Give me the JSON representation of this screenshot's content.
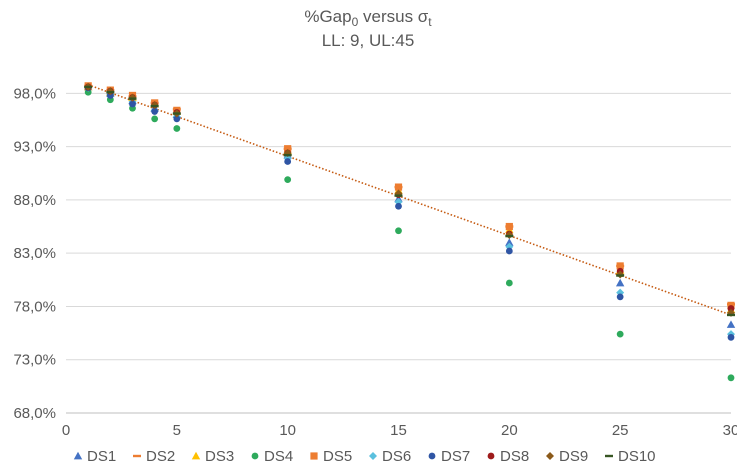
{
  "chart_data": {
    "type": "scatter",
    "title": {
      "prefix": "%Gap",
      "prefix_sub": "0",
      "middle": " versus σ",
      "suffix_sub": "t"
    },
    "subtitle": "LL: 9, UL:45",
    "xlabel": "",
    "ylabel": "",
    "xlim": [
      0,
      30
    ],
    "ylim": [
      68,
      100
    ],
    "x_ticks": [
      0,
      5,
      10,
      15,
      20,
      25,
      30
    ],
    "x_tick_labels": [
      "0",
      "5",
      "10",
      "15",
      "20",
      "25",
      "30"
    ],
    "y_ticks": [
      68,
      73,
      78,
      83,
      88,
      93,
      98
    ],
    "y_tick_labels": [
      "68,0%",
      "73,0%",
      "78,0%",
      "83,0%",
      "88,0%",
      "93,0%",
      "98,0%"
    ],
    "grid": "horizontal",
    "legend_position": "bottom",
    "x": [
      1,
      2,
      3,
      4,
      5,
      10,
      15,
      20,
      25,
      30
    ],
    "series": [
      {
        "name": "DS1",
        "marker": "triangle",
        "color": "#4472C4",
        "values": [
          98.6,
          98.0,
          97.3,
          96.6,
          96.0,
          92.2,
          88.1,
          84.0,
          80.2,
          76.3
        ]
      },
      {
        "name": "DS2",
        "marker": "dash",
        "color": "#ED7D31",
        "values": [
          98.7,
          98.3,
          97.7,
          97.1,
          96.5,
          92.8,
          89.2,
          85.5,
          81.8,
          78.2
        ]
      },
      {
        "name": "DS3",
        "marker": "triangle",
        "color": "#FFC000",
        "values": [
          98.6,
          98.1,
          97.6,
          97.0,
          96.3,
          92.6,
          88.9,
          85.2,
          81.4,
          77.7
        ]
      },
      {
        "name": "DS4",
        "marker": "circle",
        "color": "#2EAA5C",
        "values": [
          98.1,
          97.4,
          96.6,
          95.6,
          94.7,
          89.9,
          85.1,
          80.2,
          75.4,
          71.3
        ]
      },
      {
        "name": "DS5",
        "marker": "square",
        "color": "#ED7D31",
        "values": [
          98.7,
          98.3,
          97.8,
          97.1,
          96.4,
          92.8,
          89.2,
          85.5,
          81.8,
          78.1
        ]
      },
      {
        "name": "DS6",
        "marker": "diamond",
        "color": "#5BC0DE",
        "values": [
          98.5,
          97.9,
          97.2,
          96.4,
          95.8,
          91.9,
          87.8,
          83.6,
          79.3,
          75.4
        ]
      },
      {
        "name": "DS7",
        "marker": "circle",
        "color": "#2F55A4",
        "values": [
          98.5,
          97.8,
          97.0,
          96.3,
          95.6,
          91.6,
          87.4,
          83.2,
          78.9,
          75.1
        ]
      },
      {
        "name": "DS8",
        "marker": "circle",
        "color": "#9E1B1B",
        "values": [
          98.6,
          98.2,
          97.6,
          96.9,
          96.2,
          92.4,
          88.5,
          84.8,
          81.3,
          77.8
        ]
      },
      {
        "name": "DS9",
        "marker": "diamond",
        "color": "#8B5A1A",
        "values": [
          98.6,
          98.2,
          97.6,
          96.9,
          96.1,
          92.4,
          88.6,
          84.7,
          81.0,
          77.4
        ]
      },
      {
        "name": "DS10",
        "marker": "dash",
        "color": "#375623",
        "values": [
          98.6,
          98.1,
          97.5,
          96.8,
          96.1,
          92.2,
          88.4,
          84.6,
          80.9,
          77.2
        ]
      }
    ],
    "trendline": {
      "style": "dotted",
      "color": "#C55A11",
      "start": [
        1,
        98.8
      ],
      "end": [
        30,
        77.2
      ]
    }
  }
}
